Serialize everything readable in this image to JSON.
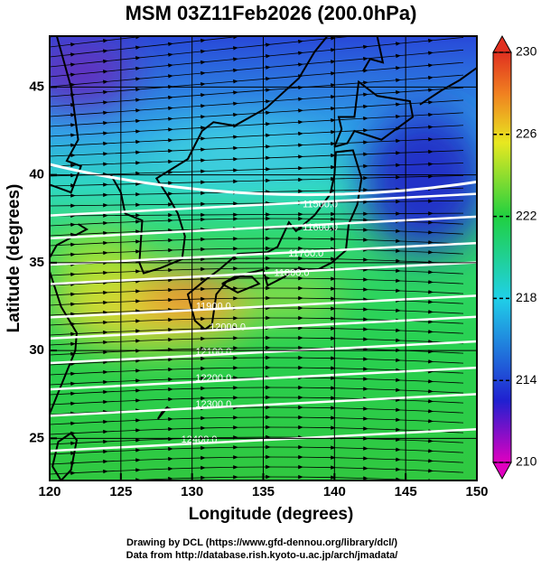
{
  "chart_data": {
    "type": "map",
    "title": "MSM 03Z11Feb2026 (200.0hPa)",
    "x_label": "Longitude (degrees)",
    "y_label": "Latitude  (degrees)",
    "xlim": [
      120,
      150
    ],
    "xticks": [
      120,
      125,
      130,
      135,
      140,
      145,
      150
    ],
    "ylim": [
      22.6,
      47.9
    ],
    "yticks": [
      25,
      30,
      35,
      40,
      45
    ],
    "grid": true,
    "colorbar": {
      "lim": [
        210,
        230
      ],
      "ticks": [
        210,
        214,
        218,
        222,
        226,
        230
      ]
    },
    "contours": [
      {
        "value": 11500,
        "label": "11500.0"
      },
      {
        "value": 11600,
        "label": "11600.0"
      },
      {
        "value": 11700,
        "label": "11700.0"
      },
      {
        "value": 11800,
        "label": "11800.0"
      },
      {
        "value": 11900,
        "label": "11900.0"
      },
      {
        "value": 12000,
        "label": "12000.0"
      },
      {
        "value": 12100,
        "label": "12100.0"
      },
      {
        "value": 12200,
        "label": "12200.0"
      },
      {
        "value": 12300,
        "label": "12300.0"
      },
      {
        "value": 12400,
        "label": "12400.0"
      }
    ],
    "credits": [
      "Drawing by DCL (https://www.gfd-dennou.org/library/dcl/)",
      "Data from http://database.rish.kyoto-u.ac.jp/arch/jmadata/"
    ]
  }
}
